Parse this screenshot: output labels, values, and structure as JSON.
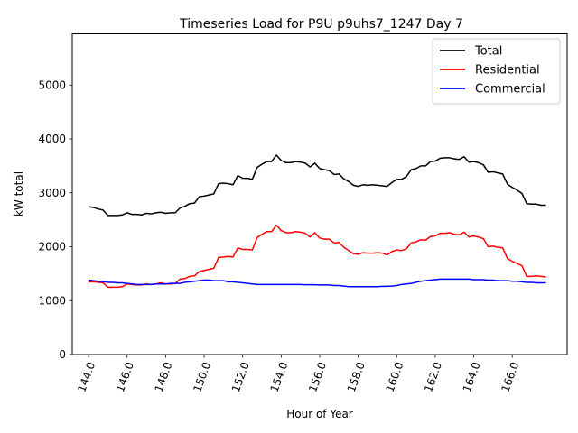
{
  "chart_data": {
    "type": "line",
    "title": "Timeseries Load for P9U p9uhs7_1247  Day 7",
    "xlabel": "Hour of Year",
    "ylabel": "kW total",
    "xlim": [
      143.15,
      168.85
    ],
    "ylim": [
      0,
      5950
    ],
    "xticks": [
      144,
      146,
      148,
      150,
      152,
      154,
      156,
      158,
      160,
      162,
      164,
      166
    ],
    "xtick_labels": [
      "144.0",
      "146.0",
      "148.0",
      "150.0",
      "152.0",
      "154.0",
      "156.0",
      "158.0",
      "160.0",
      "162.0",
      "164.0",
      "166.0"
    ],
    "yticks": [
      0,
      1000,
      2000,
      3000,
      4000,
      5000
    ],
    "ytick_labels": [
      "0",
      "1000",
      "2000",
      "3000",
      "4000",
      "5000"
    ],
    "grid": false,
    "legend_position": "top-right",
    "x": [
      144.0,
      144.25,
      144.5,
      144.75,
      145.0,
      145.25,
      145.5,
      145.75,
      146.0,
      146.25,
      146.5,
      146.75,
      147.0,
      147.25,
      147.5,
      147.75,
      148.0,
      148.25,
      148.5,
      148.75,
      149.0,
      149.25,
      149.5,
      149.75,
      150.0,
      150.25,
      150.5,
      150.75,
      151.0,
      151.25,
      151.5,
      151.75,
      152.0,
      152.25,
      152.5,
      152.75,
      153.0,
      153.25,
      153.5,
      153.75,
      154.0,
      154.25,
      154.5,
      154.75,
      155.0,
      155.25,
      155.5,
      155.75,
      156.0,
      156.25,
      156.5,
      156.75,
      157.0,
      157.25,
      157.5,
      157.75,
      158.0,
      158.25,
      158.5,
      158.75,
      159.0,
      159.25,
      159.5,
      159.75,
      160.0,
      160.25,
      160.5,
      160.75,
      161.0,
      161.25,
      161.5,
      161.75,
      162.0,
      162.25,
      162.5,
      162.75,
      163.0,
      163.25,
      163.5,
      163.75,
      164.0,
      164.25,
      164.5,
      164.75,
      165.0,
      165.25,
      165.5,
      165.75,
      166.0,
      166.25,
      166.5,
      166.75,
      167.0,
      167.25,
      167.5,
      167.75
    ],
    "series": [
      {
        "name": "Total",
        "color": "#000000",
        "values": [
          2740,
          2730,
          2700,
          2680,
          2580,
          2580,
          2580,
          2590,
          2630,
          2600,
          2600,
          2590,
          2620,
          2610,
          2630,
          2640,
          2620,
          2630,
          2630,
          2720,
          2750,
          2800,
          2810,
          2930,
          2940,
          2960,
          2980,
          3170,
          3180,
          3170,
          3150,
          3320,
          3270,
          3270,
          3250,
          3470,
          3530,
          3580,
          3580,
          3700,
          3600,
          3560,
          3560,
          3580,
          3570,
          3550,
          3480,
          3550,
          3450,
          3430,
          3410,
          3340,
          3350,
          3260,
          3210,
          3140,
          3120,
          3150,
          3140,
          3150,
          3140,
          3130,
          3120,
          3190,
          3250,
          3250,
          3300,
          3430,
          3450,
          3500,
          3500,
          3580,
          3590,
          3640,
          3650,
          3650,
          3630,
          3620,
          3670,
          3570,
          3580,
          3560,
          3520,
          3380,
          3390,
          3370,
          3350,
          3160,
          3100,
          3050,
          2990,
          2800,
          2790,
          2790,
          2770,
          2770
        ]
      },
      {
        "name": "Residential",
        "color": "#ff0000",
        "values": [
          1350,
          1350,
          1340,
          1330,
          1250,
          1250,
          1250,
          1260,
          1310,
          1300,
          1290,
          1290,
          1310,
          1300,
          1310,
          1330,
          1310,
          1310,
          1320,
          1400,
          1410,
          1450,
          1460,
          1540,
          1560,
          1580,
          1600,
          1800,
          1810,
          1820,
          1810,
          1980,
          1950,
          1950,
          1940,
          2170,
          2230,
          2280,
          2280,
          2400,
          2300,
          2260,
          2260,
          2280,
          2270,
          2250,
          2180,
          2260,
          2160,
          2140,
          2140,
          2070,
          2080,
          1990,
          1930,
          1870,
          1860,
          1890,
          1880,
          1880,
          1890,
          1880,
          1850,
          1910,
          1940,
          1930,
          1960,
          2070,
          2090,
          2130,
          2120,
          2190,
          2200,
          2250,
          2250,
          2260,
          2230,
          2220,
          2270,
          2180,
          2200,
          2180,
          2150,
          2000,
          2010,
          1990,
          1980,
          1780,
          1730,
          1690,
          1650,
          1450,
          1450,
          1460,
          1450,
          1440
        ]
      },
      {
        "name": "Commercial",
        "color": "#0000ff",
        "values": [
          1380,
          1370,
          1360,
          1350,
          1340,
          1340,
          1330,
          1330,
          1320,
          1310,
          1300,
          1300,
          1300,
          1300,
          1310,
          1310,
          1310,
          1320,
          1320,
          1320,
          1340,
          1350,
          1360,
          1370,
          1380,
          1380,
          1370,
          1370,
          1370,
          1350,
          1350,
          1340,
          1330,
          1320,
          1310,
          1300,
          1300,
          1300,
          1300,
          1300,
          1300,
          1300,
          1300,
          1300,
          1300,
          1295,
          1295,
          1295,
          1290,
          1290,
          1290,
          1280,
          1280,
          1270,
          1260,
          1260,
          1260,
          1260,
          1260,
          1260,
          1260,
          1265,
          1265,
          1270,
          1280,
          1300,
          1310,
          1320,
          1340,
          1360,
          1370,
          1380,
          1390,
          1400,
          1400,
          1400,
          1400,
          1400,
          1400,
          1400,
          1390,
          1390,
          1390,
          1380,
          1380,
          1370,
          1370,
          1370,
          1360,
          1360,
          1350,
          1340,
          1340,
          1330,
          1330,
          1330
        ]
      }
    ]
  }
}
